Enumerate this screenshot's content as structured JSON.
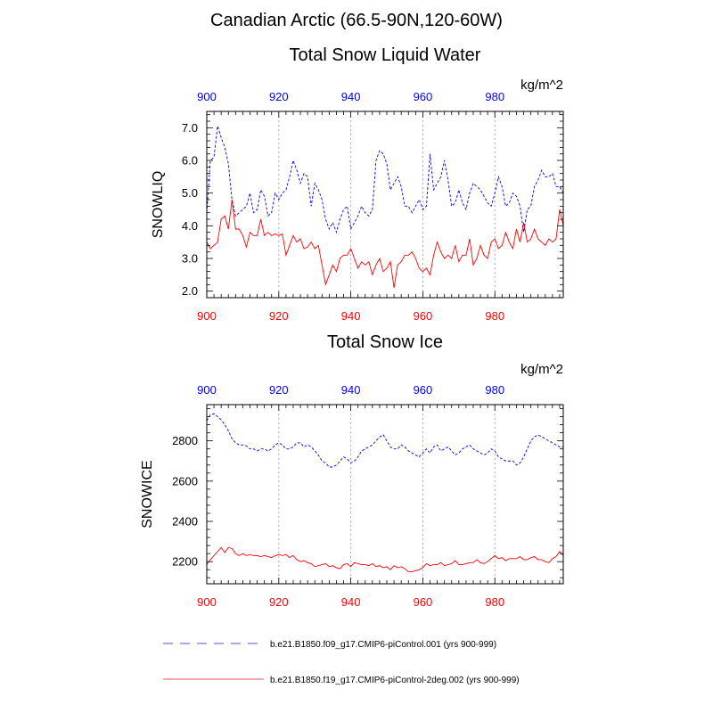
{
  "page": {
    "title": "Canadian Arctic (66.5-90N,120-60W)"
  },
  "colors": {
    "series1": "#0000ff",
    "series2": "#ff0000",
    "top_axis": "#0000ff",
    "bottom_axis": "#ff0000",
    "grid": "#999999"
  },
  "chart_data": [
    {
      "type": "line",
      "title": "Total Snow Liquid Water",
      "ylabel": "SNOWLIQ",
      "units": "kg/m^2",
      "xlim": [
        900,
        999
      ],
      "ylim": [
        1.8,
        7.5
      ],
      "yticks": [
        "2.0",
        "3.0",
        "4.0",
        "5.0",
        "6.0",
        "7.0"
      ],
      "ytick_values": [
        2,
        3,
        4,
        5,
        6,
        7
      ],
      "xticks": [
        "900",
        "920",
        "940",
        "960",
        "980"
      ],
      "xtick_values": [
        900,
        920,
        940,
        960,
        980
      ],
      "grid_x": true,
      "series": [
        {
          "name": "b.e21.B1850.f09_g17.CMIP6-piControl.001 (yrs 900-999)",
          "style": "dashed",
          "color": "#0000ff",
          "x_start": 900,
          "values": [
            4.4,
            6.0,
            6.1,
            7.05,
            6.7,
            6.4,
            5.9,
            4.8,
            4.3,
            4.4,
            4.5,
            4.6,
            5.0,
            4.4,
            4.5,
            5.1,
            4.9,
            4.3,
            4.4,
            5.0,
            4.8,
            5.0,
            5.1,
            5.5,
            6.0,
            5.7,
            5.3,
            5.6,
            5.5,
            4.6,
            5.3,
            5.1,
            4.8,
            4.2,
            3.9,
            4.1,
            3.8,
            4.2,
            4.5,
            4.6,
            3.9,
            4.1,
            4.3,
            4.6,
            4.4,
            4.3,
            4.5,
            6.0,
            6.3,
            6.2,
            5.9,
            5.1,
            5.3,
            5.5,
            5.2,
            4.6,
            4.6,
            4.4,
            4.6,
            4.8,
            4.5,
            4.6,
            6.2,
            5.1,
            5.3,
            5.5,
            6.0,
            5.4,
            4.6,
            4.7,
            5.1,
            4.7,
            4.5,
            5.0,
            5.3,
            5.2,
            5.1,
            4.9,
            4.7,
            4.6,
            5.0,
            5.5,
            5.2,
            4.6,
            4.7,
            5.0,
            4.9,
            4.6,
            3.8,
            4.5,
            4.6,
            5.2,
            5.4,
            5.7,
            5.5,
            5.5,
            5.6,
            5.2,
            5.2,
            5.0
          ]
        },
        {
          "name": "b.e21.B1850.f19_g17.CMIP6-piControl-2deg.002 (yrs 900-999)",
          "style": "solid",
          "color": "#ff0000",
          "x_start": 900,
          "values": [
            3.5,
            3.3,
            3.4,
            3.5,
            4.2,
            4.3,
            3.9,
            4.8,
            3.9,
            3.9,
            3.7,
            3.35,
            3.8,
            3.7,
            3.7,
            4.2,
            3.7,
            3.8,
            3.7,
            3.75,
            3.7,
            3.75,
            3.1,
            3.4,
            3.7,
            3.5,
            3.6,
            3.3,
            3.35,
            3.5,
            3.3,
            3.4,
            2.8,
            2.2,
            2.5,
            2.8,
            2.6,
            3.0,
            3.1,
            3.1,
            3.3,
            3.0,
            2.7,
            2.9,
            2.8,
            2.9,
            2.5,
            2.8,
            3.0,
            2.6,
            2.7,
            2.9,
            2.1,
            2.8,
            2.9,
            3.1,
            3.1,
            3.2,
            3.0,
            2.7,
            2.6,
            2.7,
            2.5,
            3.1,
            3.5,
            3.2,
            3.0,
            3.1,
            3.0,
            3.4,
            2.9,
            3.1,
            3.1,
            3.6,
            2.8,
            3.0,
            3.4,
            3.1,
            3.0,
            3.5,
            3.6,
            3.3,
            3.4,
            3.8,
            3.5,
            3.3,
            3.9,
            3.5,
            4.1,
            3.5,
            3.6,
            3.9,
            3.6,
            3.5,
            3.4,
            3.6,
            3.5,
            3.6,
            4.5,
            4.0
          ]
        }
      ]
    },
    {
      "type": "line",
      "title": "Total Snow Ice",
      "ylabel": "SNOWICE",
      "units": "kg/m^2",
      "xlim": [
        900,
        999
      ],
      "ylim": [
        2090,
        2980
      ],
      "yticks": [
        "2200",
        "2400",
        "2600",
        "2800"
      ],
      "ytick_values": [
        2200,
        2400,
        2600,
        2800
      ],
      "xticks": [
        "900",
        "920",
        "940",
        "960",
        "980"
      ],
      "xtick_values": [
        900,
        920,
        940,
        960,
        980
      ],
      "grid_x": true,
      "series": [
        {
          "name": "b.e21.B1850.f09_g17.CMIP6-piControl.001 (yrs 900-999)",
          "style": "dashed",
          "color": "#0000ff",
          "x_start": 900,
          "values": [
            2900,
            2930,
            2935,
            2920,
            2905,
            2880,
            2850,
            2810,
            2790,
            2780,
            2780,
            2775,
            2760,
            2760,
            2750,
            2760,
            2760,
            2750,
            2760,
            2780,
            2790,
            2780,
            2760,
            2760,
            2770,
            2790,
            2790,
            2770,
            2780,
            2770,
            2750,
            2730,
            2700,
            2690,
            2670,
            2670,
            2680,
            2700,
            2720,
            2710,
            2690,
            2700,
            2720,
            2750,
            2760,
            2770,
            2780,
            2800,
            2820,
            2830,
            2800,
            2770,
            2760,
            2760,
            2780,
            2770,
            2750,
            2740,
            2730,
            2720,
            2740,
            2760,
            2740,
            2770,
            2780,
            2750,
            2760,
            2770,
            2750,
            2730,
            2740,
            2760,
            2770,
            2780,
            2760,
            2750,
            2740,
            2730,
            2740,
            2760,
            2750,
            2720,
            2710,
            2700,
            2700,
            2700,
            2680,
            2690,
            2720,
            2760,
            2800,
            2820,
            2830,
            2820,
            2810,
            2800,
            2790,
            2780,
            2770,
            2770
          ]
        },
        {
          "name": "b.e21.B1850.f19_g17.CMIP6-piControl-2deg.002 (yrs 900-999)",
          "style": "solid",
          "color": "#ff0000",
          "x_start": 900,
          "values": [
            2185,
            2210,
            2230,
            2250,
            2270,
            2245,
            2270,
            2265,
            2240,
            2230,
            2240,
            2230,
            2235,
            2230,
            2230,
            2225,
            2230,
            2225,
            2220,
            2230,
            2235,
            2230,
            2235,
            2220,
            2230,
            2210,
            2200,
            2205,
            2195,
            2190,
            2175,
            2180,
            2185,
            2190,
            2175,
            2180,
            2170,
            2165,
            2185,
            2190,
            2175,
            2195,
            2190,
            2185,
            2185,
            2180,
            2190,
            2175,
            2180,
            2170,
            2175,
            2160,
            2180,
            2170,
            2175,
            2165,
            2150,
            2150,
            2155,
            2160,
            2170,
            2190,
            2180,
            2185,
            2185,
            2195,
            2180,
            2185,
            2190,
            2205,
            2185,
            2185,
            2190,
            2195,
            2195,
            2210,
            2195,
            2190,
            2200,
            2215,
            2230,
            2215,
            2220,
            2205,
            2215,
            2215,
            2215,
            2225,
            2210,
            2210,
            2220,
            2225,
            2210,
            2210,
            2200,
            2195,
            2215,
            2225,
            2250,
            2230
          ]
        }
      ]
    }
  ],
  "legend": {
    "items": [
      {
        "label": "b.e21.B1850.f09_g17.CMIP6-piControl.001 (yrs 900-999)",
        "style": "dashed",
        "color": "#0000ff"
      },
      {
        "label": "b.e21.B1850.f19_g17.CMIP6-piControl-2deg.002 (yrs 900-999)",
        "style": "solid",
        "color": "#ff0000"
      }
    ]
  }
}
